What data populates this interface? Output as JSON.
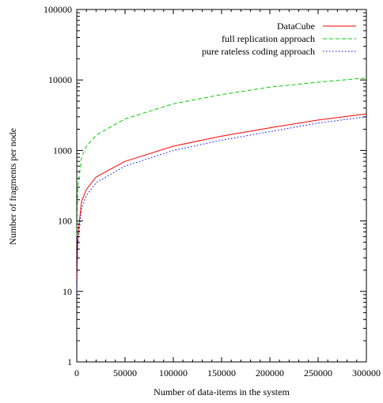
{
  "chart_data": {
    "type": "line",
    "title": "",
    "xlabel": "Number of data-items in the system",
    "ylabel": "Number of fragments per node",
    "xlim": [
      0,
      300000
    ],
    "ylim": [
      1,
      100000
    ],
    "yscale": "log",
    "grid": false,
    "legend_position": "top-right",
    "x_ticks": [
      0,
      50000,
      100000,
      150000,
      200000,
      250000,
      300000
    ],
    "x_tick_labels": [
      "0",
      "50000",
      "100000",
      "150000",
      "200000",
      "250000",
      "300000"
    ],
    "y_ticks": [
      1,
      10,
      100,
      1000,
      10000,
      100000
    ],
    "y_tick_labels": [
      "1",
      "10",
      "100",
      "1000",
      "10000",
      "100000"
    ],
    "x": [
      100,
      1000,
      5000,
      10000,
      20000,
      50000,
      100000,
      150000,
      200000,
      250000,
      300000
    ],
    "series": [
      {
        "name": "DataCube",
        "color": "#ff0000",
        "dash": "solid",
        "values": [
          15,
          60,
          190,
          280,
          420,
          700,
          1150,
          1600,
          2100,
          2700,
          3300
        ]
      },
      {
        "name": "full replication  approach",
        "color": "#00cc00",
        "dash": "dashed",
        "values": [
          60,
          290,
          800,
          1150,
          1650,
          2800,
          4600,
          6200,
          7900,
          9300,
          10700
        ]
      },
      {
        "name": "pure rateless coding approach",
        "color": "#0000ff",
        "dash": "dotted",
        "values": [
          10,
          45,
          150,
          230,
          350,
          600,
          1000,
          1400,
          1850,
          2450,
          3000
        ]
      }
    ]
  }
}
